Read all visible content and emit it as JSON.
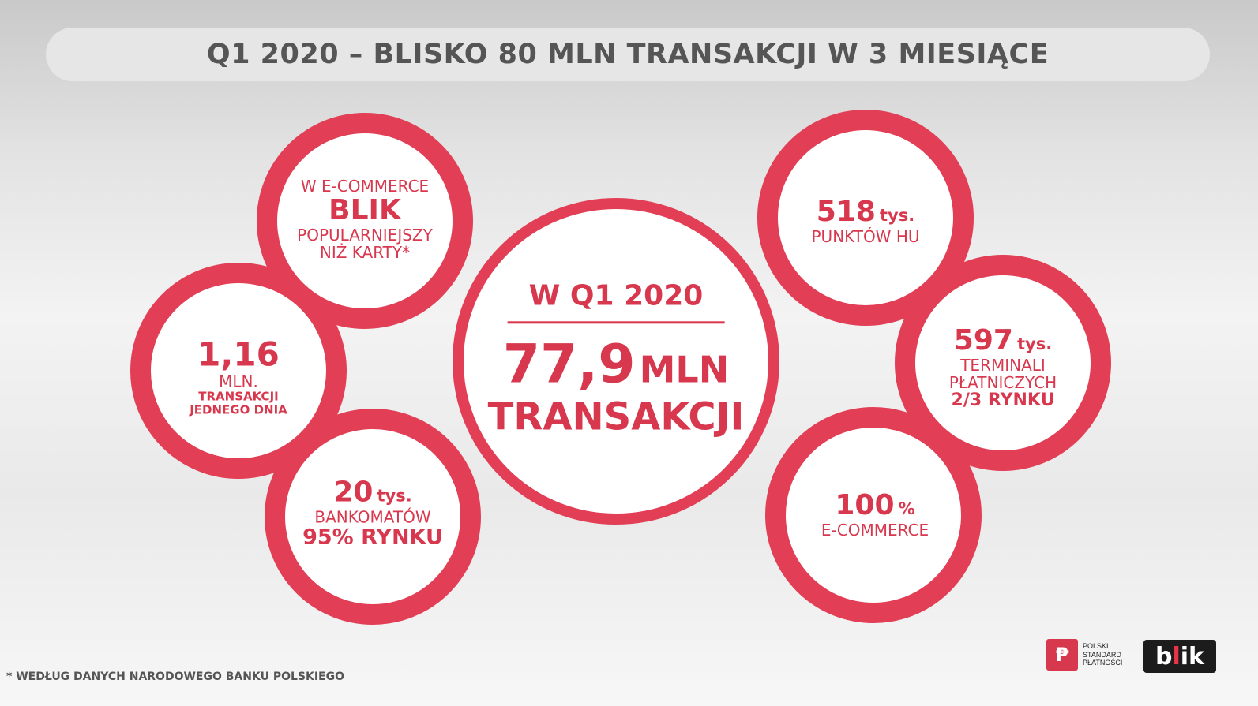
{
  "title": "Q1 2020 – BLISKO 80 MLN TRANSAKCJI W 3 MIESIĄCE",
  "center": {
    "heading": "W Q1 2020",
    "number": "77,9",
    "unit": "MLN",
    "label": "TRANSAKCJI"
  },
  "bubbles": {
    "ecommerce": {
      "line1": "W E-COMMERCE",
      "line2": "BLIK",
      "line3": "POPULARNIEJSZY",
      "line4": "NIŻ KARTY*"
    },
    "daily": {
      "value": "1,16",
      "unit": "MLN.",
      "line1": "TRANSAKCJI",
      "line2": "JEDNEGO DNIA"
    },
    "atm": {
      "value": "20",
      "unit": "tys.",
      "line1": "BANKOMATÓW",
      "line2": "95% RYNKU"
    },
    "merchants": {
      "value": "518",
      "unit": "tys.",
      "line1": "PUNKTÓW HU"
    },
    "terminals": {
      "value": "597",
      "unit": "tys.",
      "line1": "TERMINALI",
      "line2": "PŁATNICZYCH",
      "line3": "2/3 RYNKU"
    },
    "ecom100": {
      "value": "100",
      "unit": "%",
      "line1": "E-COMMERCE"
    }
  },
  "footnote": "* WEDŁUG DANYCH NARODOWEGO BANKU POLSKIEGO",
  "logos": {
    "psp": {
      "line1": "POLSKI",
      "line2": "STANDARD",
      "line3": "PŁATNOŚCI"
    },
    "blik": {
      "text_before": "b",
      "dot": "l",
      "text_after": "ik"
    }
  },
  "colors": {
    "accent": "#d8384e",
    "title_text": "#555555",
    "title_bar": "#e6e6e6"
  }
}
